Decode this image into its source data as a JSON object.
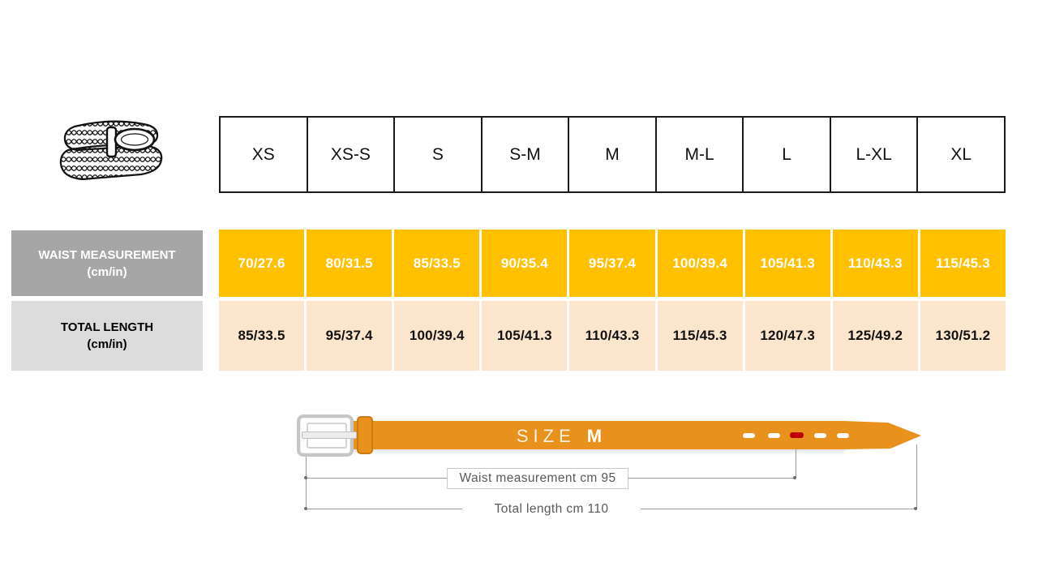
{
  "table": {
    "sizes": [
      "XS",
      "XS-S",
      "S",
      "S-M",
      "M",
      "M-L",
      "L",
      "L-XL",
      "XL"
    ],
    "rows": [
      {
        "label": "WAIST MEASUREMENT",
        "unit": "(cm/in)",
        "values": [
          "70/27.6",
          "80/31.5",
          "85/33.5",
          "90/35.4",
          "95/37.4",
          "100/39.4",
          "105/41.3",
          "110/43.3",
          "115/45.3"
        ]
      },
      {
        "label": "TOTAL LENGTH",
        "unit": "(cm/in)",
        "values": [
          "85/33.5",
          "95/37.4",
          "100/39.4",
          "105/41.3",
          "110/43.3",
          "115/45.3",
          "120/47.3",
          "125/49.2",
          "130/51.2"
        ]
      }
    ]
  },
  "diagram": {
    "size_word": "SIZE",
    "size_value": "M",
    "waist_annotation": "Waist measurement cm 95",
    "length_annotation": "Total length cm 110"
  },
  "colors": {
    "waist_row_bg": "#FFC000",
    "waist_row_text": "#FFFFFF",
    "length_row_bg": "#FBE5CD",
    "length_row_text": "#111111",
    "waist_label_bg": "#A6A6A6",
    "length_label_bg": "#DCDCDC",
    "belt_orange": "#E8911C",
    "hole_red": "#C00000",
    "annotation_text": "#595959",
    "dimension_line": "#9B9B9B",
    "table_border": "#1A1A1A"
  },
  "icons": {
    "belt_illustration": "braided-belt-drawing"
  }
}
